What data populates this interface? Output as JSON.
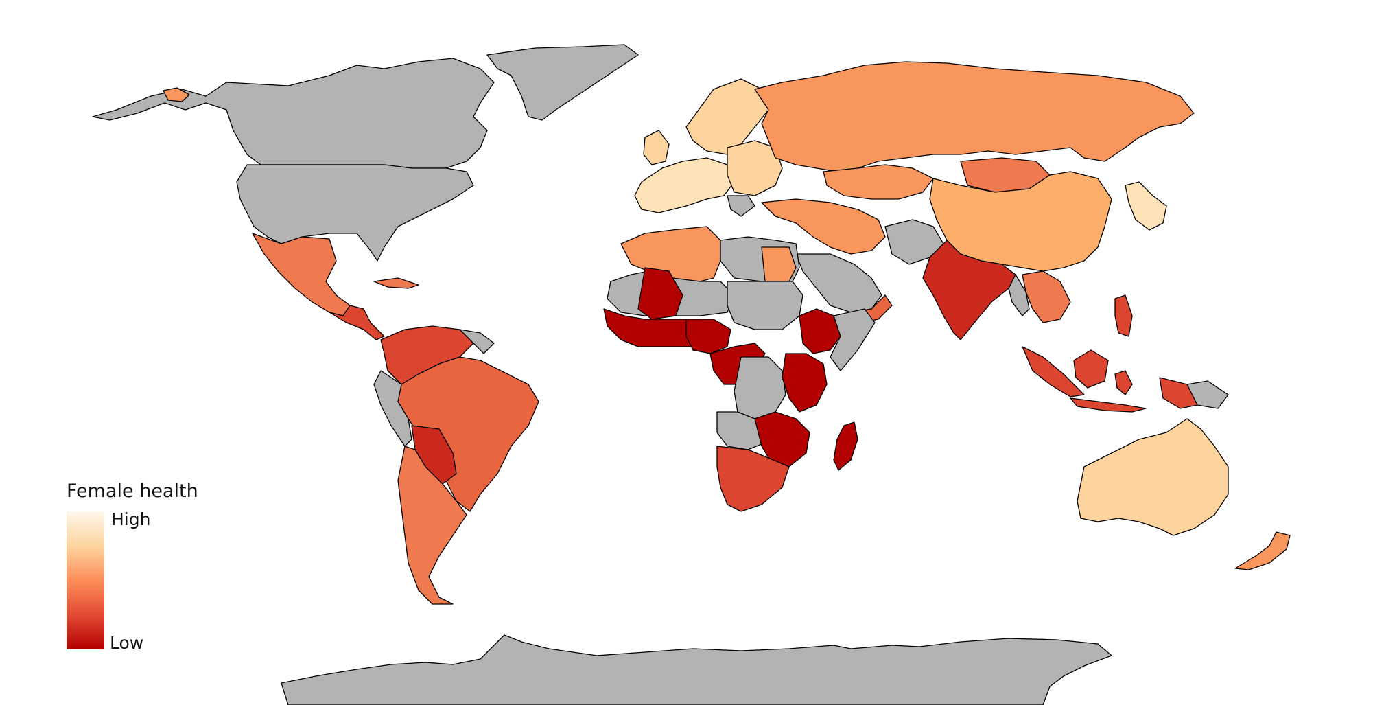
{
  "legend": {
    "title": "Female health",
    "high_label": "High",
    "low_label": "Low",
    "gradient_colors": [
      "#fff7ec",
      "#fdd49e",
      "#fc8d59",
      "#e34a33",
      "#b30000"
    ]
  },
  "colors": {
    "no_data": "#b3b3b3",
    "level_1_high": "#fee3b8",
    "level_2": "#fdd49e",
    "level_3": "#fcae6b",
    "level_4": "#f9965e",
    "level_5": "#f07a4f",
    "level_6": "#e8653f",
    "level_7": "#dc4530",
    "level_8": "#cc2a1f",
    "level_9_low": "#b30000",
    "border": "#000000",
    "background": "#ffffff"
  }
}
